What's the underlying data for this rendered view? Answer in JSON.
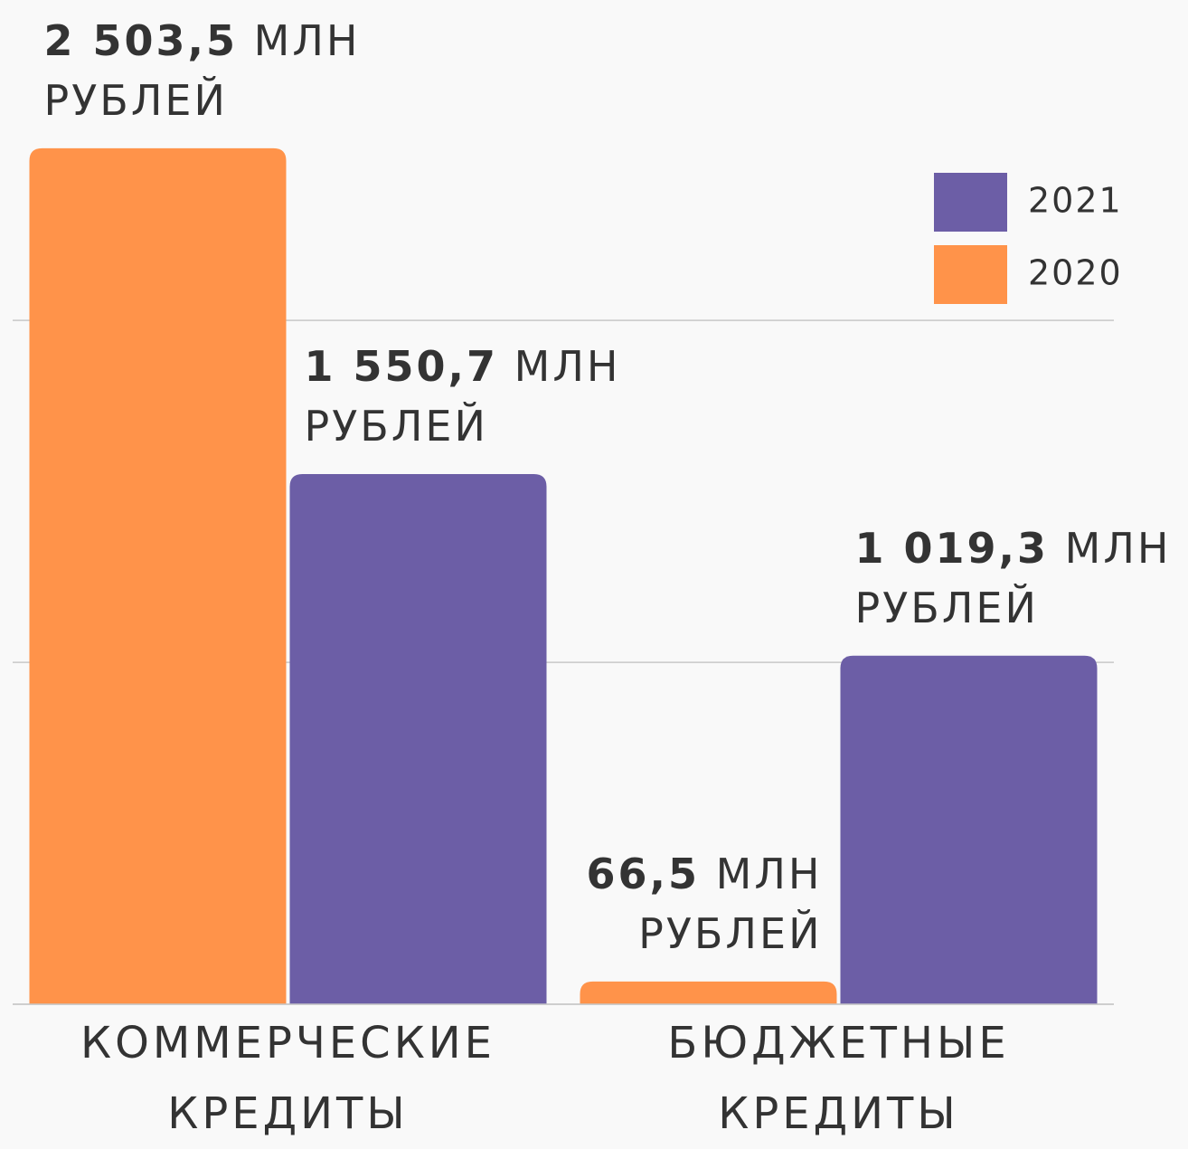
{
  "chart_data": {
    "type": "bar",
    "categories": [
      "КОММЕРЧЕСКИЕ КРЕДИТЫ",
      "БЮДЖЕТНЫЕ КРЕДИТЫ"
    ],
    "series": [
      {
        "name": "2020",
        "color": "#ff934a",
        "values": [
          2503.5,
          66.5
        ],
        "value_labels": [
          "2 503,5",
          "66,5"
        ]
      },
      {
        "name": "2021",
        "color": "#6c5ea6",
        "values": [
          1550.7,
          1019.3
        ],
        "value_labels": [
          "1 550,7",
          "1 019,3"
        ]
      }
    ],
    "value_unit": "МЛН РУБЛЕЙ",
    "ylim": [
      0,
      2900
    ],
    "yticks": [
      0,
      1000,
      2000
    ],
    "grid": true,
    "legend": "top-right"
  }
}
